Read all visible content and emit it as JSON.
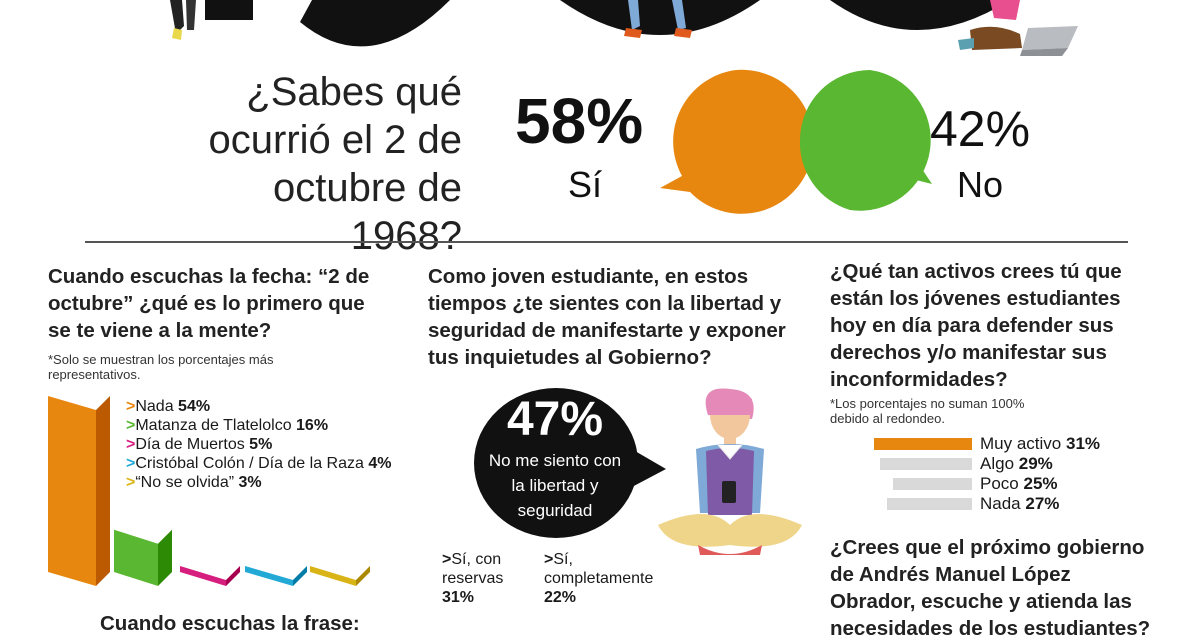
{
  "colors": {
    "orange": "#E8870F",
    "green": "#5AB731",
    "magenta": "#D51E7E",
    "cyan": "#22A9D6",
    "yellow": "#D9B417",
    "gray_bar": "#D9D9D9",
    "dark": "#111111"
  },
  "headline": {
    "question_lines": [
      "¿Sabes qué",
      "ocurrió el 2 de",
      "octubre de 1968?"
    ]
  },
  "section1": {
    "question_lines": [
      "Cuando escuchas la fecha: “2 de",
      "octubre” ¿qué es lo primero que",
      "se te viene a la mente?"
    ],
    "note_lines": [
      "*Solo se muestran los porcentajes más",
      "representativos."
    ]
  },
  "section2": {
    "question_lines": [
      "Como joven estudiante, en estos",
      "tiempos ¿te sientes con la libertad y",
      "seguridad de manifestarte y exponer",
      "tus inquietudes al Gobierno?"
    ]
  },
  "section3": {
    "question_lines": [
      "¿Qué tan activos crees tú que",
      "están los jóvenes estudiantes",
      "hoy en día para defender sus",
      "derechos y/o manifestar sus",
      "inconformidades?"
    ],
    "note_lines": [
      "*Los porcentajes no suman 100%",
      "debido al redondeo."
    ]
  },
  "section4": {
    "question_lines": [
      "¿Crees que el próximo gobierno",
      "de Andrés Manuel López",
      "Obrador, escuche y atienda las",
      "necesidades de los estudiantes?"
    ]
  },
  "section5": {
    "question_lines": [
      "Cuando escuchas la frase:"
    ]
  },
  "chart_data": [
    {
      "type": "pie",
      "title": "¿Sabes qué ocurrió el 2 de octubre de 1968?",
      "categories": [
        "Sí",
        "No"
      ],
      "values": [
        58,
        42
      ],
      "value_labels": [
        "58%",
        "42%"
      ],
      "colors": [
        "#E8870F",
        "#5AB731"
      ]
    },
    {
      "type": "bar",
      "title": "Cuando escuchas la fecha: “2 de octubre” ¿qué es lo primero que se te viene a la mente?",
      "categories": [
        "Nada",
        "Matanza de Tlatelolco",
        "Día de Muertos",
        "Cristóbal Colón / Día de la Raza",
        "“No se olvida”"
      ],
      "values": [
        54,
        16,
        5,
        4,
        3
      ],
      "value_labels": [
        "54%",
        "16%",
        "5%",
        "4%",
        "3%"
      ],
      "colors": [
        "#E8870F",
        "#5AB731",
        "#D51E7E",
        "#22A9D6",
        "#D9B417"
      ]
    },
    {
      "type": "pie",
      "title": "Como joven estudiante, en estos tiempos ¿te sientes con la libertad y seguridad de manifestarte y exponer tus inquietudes al Gobierno?",
      "categories": [
        "No me siento con la libertad y seguridad",
        "Sí, con reservas",
        "Sí, completamente"
      ],
      "values": [
        47,
        31,
        22
      ],
      "value_labels": [
        "47%",
        "31%",
        "22%"
      ],
      "label_lines": {
        "main": [
          "No me siento con",
          "la libertad y",
          "seguridad"
        ],
        "reservas": [
          "Sí, con",
          "reservas"
        ],
        "completamente": [
          "Sí,",
          "completamente"
        ]
      },
      "marker": ">"
    },
    {
      "type": "bar",
      "title": "¿Qué tan activos crees tú que están los jóvenes estudiantes hoy en día para defender sus derechos y/o manifestar sus inconformidades?",
      "categories": [
        "Muy activo",
        "Algo",
        "Poco",
        "Nada"
      ],
      "values": [
        31,
        29,
        25,
        27
      ],
      "value_labels": [
        "31%",
        "29%",
        "25%",
        "27%"
      ],
      "colors": [
        "#E8870F",
        "#D9D9D9",
        "#D9D9D9",
        "#D9D9D9"
      ]
    }
  ]
}
